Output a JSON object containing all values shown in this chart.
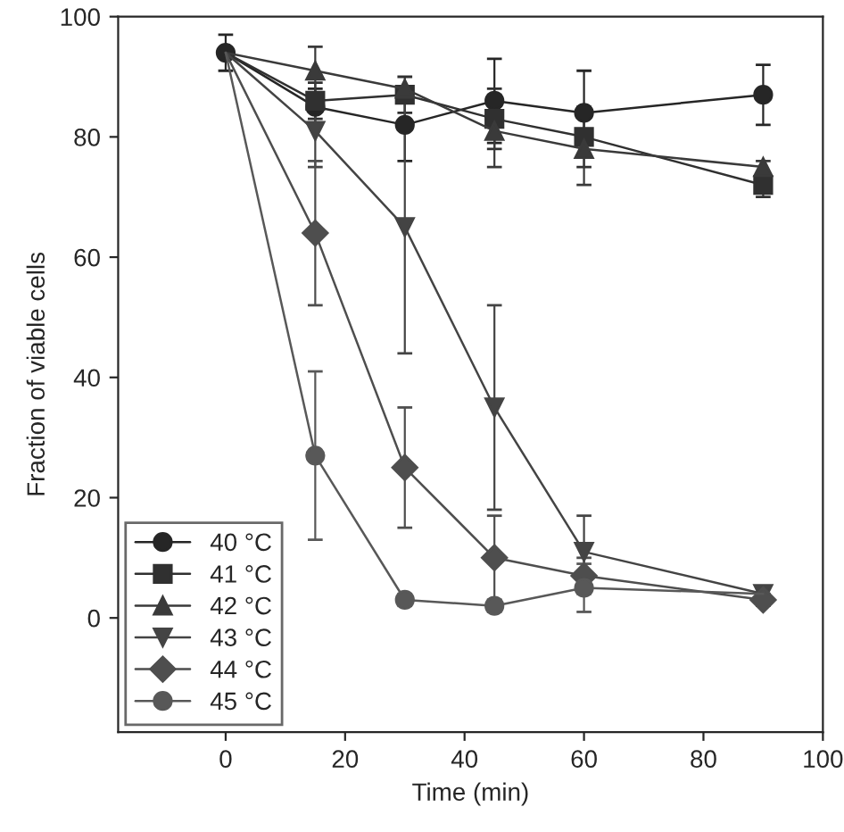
{
  "chart_data": {
    "type": "line",
    "xlabel": "Time (min)",
    "ylabel": "Fraction of viable cells",
    "x": [
      0,
      15,
      30,
      45,
      60,
      90
    ],
    "xlim": [
      -18,
      100
    ],
    "xticks": [
      0,
      20,
      40,
      60,
      80,
      100
    ],
    "ylim": [
      -19,
      100
    ],
    "yticks": [
      0,
      20,
      40,
      60,
      80,
      100
    ],
    "grid": false,
    "legend": "bottom left",
    "series": [
      {
        "name": "40 °C",
        "color": "#262626",
        "marker": "circle",
        "values": [
          94,
          85,
          82,
          86,
          84,
          87
        ],
        "errors": [
          3,
          3,
          6,
          7,
          7,
          5
        ]
      },
      {
        "name": "41 °C",
        "color": "#303030",
        "marker": "square",
        "values": [
          94,
          86,
          87,
          83,
          80,
          72
        ],
        "errors": [
          null,
          3,
          3,
          5,
          5,
          2
        ]
      },
      {
        "name": "42 °C",
        "color": "#3a3a3a",
        "marker": "triangle",
        "values": [
          94,
          91,
          88,
          81,
          78,
          75
        ],
        "errors": [
          null,
          4,
          null,
          6,
          6,
          1
        ]
      },
      {
        "name": "43 °C",
        "color": "#444444",
        "marker": "triangle_down",
        "values": [
          94,
          81,
          65,
          35,
          11,
          4
        ],
        "errors": [
          null,
          6,
          21,
          17,
          6,
          1
        ]
      },
      {
        "name": "44 °C",
        "color": "#4e4e4e",
        "marker": "diamond",
        "values": [
          94,
          64,
          25,
          10,
          7,
          3
        ],
        "errors": [
          null,
          12,
          10,
          7,
          3,
          1
        ]
      },
      {
        "name": "45 °C",
        "color": "#585858",
        "marker": "circle",
        "values": [
          94,
          27,
          3,
          2,
          5,
          4
        ],
        "errors": [
          null,
          14,
          1,
          1,
          4,
          1
        ]
      }
    ]
  }
}
